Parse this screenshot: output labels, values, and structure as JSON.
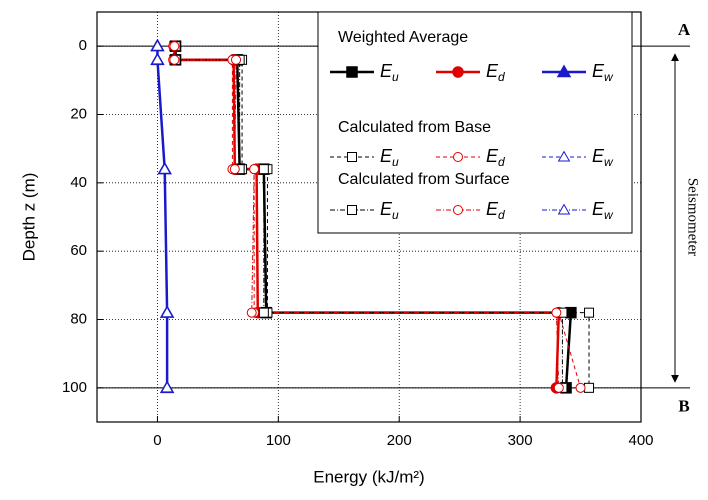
{
  "chart_data": {
    "type": "line",
    "xlabel": "Energy (kJ/m²)",
    "ylabel": "Depth z (m)",
    "xlim": [
      -50,
      400
    ],
    "xticks": [
      0,
      100,
      200,
      300,
      400
    ],
    "ylim": [
      -10,
      110
    ],
    "yticks": [
      0,
      20,
      40,
      60,
      80,
      100
    ],
    "y_inverted": true,
    "grid": true,
    "legend": "upper right",
    "series": [
      {
        "name": "Eu",
        "group": "Weighted Average",
        "color": "#000000",
        "style": "solid",
        "marker": "square",
        "filled": true,
        "x": [
          15,
          15,
          66,
          68,
          88,
          90,
          342,
          338
        ],
        "y": [
          0,
          4,
          4,
          36,
          36,
          78,
          78,
          100
        ]
      },
      {
        "name": "Ed",
        "group": "Weighted Average",
        "color": "#e00000",
        "style": "solid",
        "marker": "circle",
        "filled": true,
        "x": [
          14,
          14,
          63,
          64,
          82,
          83,
          332,
          330
        ],
        "y": [
          0,
          4,
          4,
          36,
          36,
          78,
          78,
          100
        ]
      },
      {
        "name": "Ew",
        "group": "Weighted Average",
        "color": "#1a1acc",
        "style": "solid",
        "marker": "triangle",
        "filled": true,
        "x": [
          0,
          0,
          6,
          8,
          8
        ],
        "y": [
          0,
          4,
          36,
          78,
          100
        ]
      },
      {
        "name": "Eu",
        "group": "Calculated from Base",
        "color": "#000000",
        "style": "dashed",
        "marker": "square",
        "filled": false,
        "x": [
          14,
          14,
          70,
          70,
          91,
          91,
          357,
          357
        ],
        "y": [
          0,
          4,
          4,
          36,
          36,
          78,
          78,
          100
        ]
      },
      {
        "name": "Ed",
        "group": "Calculated from Base",
        "color": "#e00000",
        "style": "dashed",
        "marker": "circle",
        "filled": false,
        "x": [
          13,
          13,
          62,
          62,
          80,
          80,
          332,
          350
        ],
        "y": [
          0,
          4,
          4,
          36,
          36,
          78,
          78,
          100
        ]
      },
      {
        "name": "Ew",
        "group": "Calculated from Base",
        "color": "#1a1acc",
        "style": "dashed",
        "marker": "triangle",
        "filled": false,
        "x": [
          0,
          0,
          6,
          8,
          8
        ],
        "y": [
          0,
          4,
          36,
          78,
          100
        ]
      },
      {
        "name": "Eu",
        "group": "Calculated from Surface",
        "color": "#000000",
        "style": "dashdot",
        "marker": "square",
        "filled": false,
        "x": [
          15,
          15,
          68,
          68,
          88,
          88,
          335,
          335
        ],
        "y": [
          0,
          4,
          4,
          36,
          36,
          78,
          78,
          100
        ]
      },
      {
        "name": "Ed",
        "group": "Calculated from Surface",
        "color": "#e00000",
        "style": "dashdot",
        "marker": "circle",
        "filled": false,
        "x": [
          14,
          14,
          65,
          64,
          80,
          78,
          330,
          332
        ],
        "y": [
          0,
          4,
          4,
          36,
          36,
          78,
          78,
          100
        ]
      },
      {
        "name": "Ew",
        "group": "Calculated from Surface",
        "color": "#1a1acc",
        "style": "dashdot",
        "marker": "triangle",
        "filled": false,
        "x": [
          0,
          0,
          6,
          8,
          8
        ],
        "y": [
          0,
          4,
          36,
          78,
          100
        ]
      }
    ],
    "annotations": [
      {
        "text": "A",
        "y": 0
      },
      {
        "text": "B",
        "y": 100
      }
    ],
    "side_label": "Seismometer"
  }
}
